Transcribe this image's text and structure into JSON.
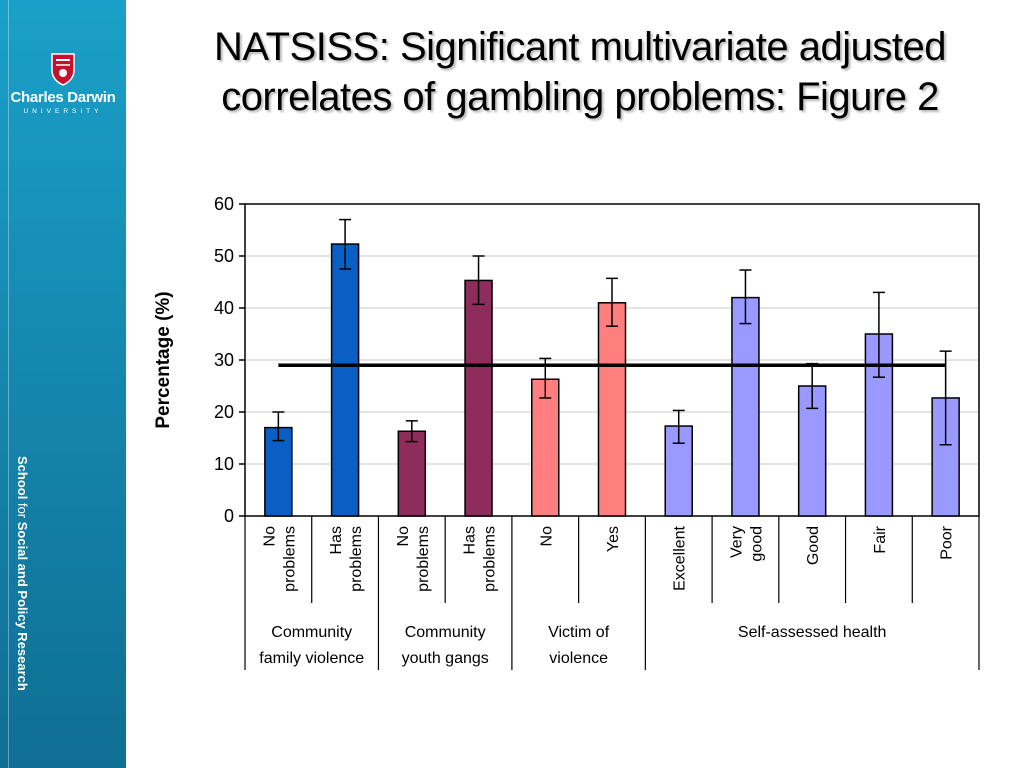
{
  "slide": {
    "title_line1": "NATSISS: Significant multivariate adjusted",
    "title_line2": "correlates of gambling problems: Figure 2"
  },
  "branding": {
    "logo_name": "Charles Darwin",
    "logo_sub": "UNIVERSITY",
    "school_prefix": "School",
    "school_for": "for",
    "school_suffix": "Social and Policy Research"
  },
  "colors": {
    "sidebar": "#1589b0",
    "blue": "#0a5fc4",
    "maroon": "#8e2d5c",
    "salmon": "#ff7f7f",
    "lavender": "#9999ff"
  },
  "chart_data": {
    "type": "bar",
    "ylabel": "Percentage (%)",
    "ylim": [
      0,
      60
    ],
    "yticks": [
      0,
      10,
      20,
      30,
      40,
      50,
      60
    ],
    "reference_line": 29,
    "grid": true,
    "bars": [
      {
        "label": [
          "No",
          "problems"
        ],
        "value": 17,
        "err_low": 14.5,
        "err_high": 20,
        "color": "#0a5fc4"
      },
      {
        "label": [
          "Has",
          "problems"
        ],
        "value": 52.3,
        "err_low": 47.5,
        "err_high": 57,
        "color": "#0a5fc4"
      },
      {
        "label": [
          "No",
          "problems"
        ],
        "value": 16.3,
        "err_low": 14.3,
        "err_high": 18.3,
        "color": "#8e2d5c"
      },
      {
        "label": [
          "Has",
          "problems"
        ],
        "value": 45.3,
        "err_low": 40.7,
        "err_high": 50,
        "color": "#8e2d5c"
      },
      {
        "label": [
          "No"
        ],
        "value": 26.3,
        "err_low": 22.7,
        "err_high": 30.3,
        "color": "#ff7f7f"
      },
      {
        "label": [
          "Yes"
        ],
        "value": 41,
        "err_low": 36.5,
        "err_high": 45.7,
        "color": "#ff7f7f"
      },
      {
        "label": [
          "Excellent"
        ],
        "value": 17.3,
        "err_low": 14,
        "err_high": 20.3,
        "color": "#9999ff"
      },
      {
        "label": [
          "Very",
          "good"
        ],
        "value": 42,
        "err_low": 37,
        "err_high": 47.3,
        "color": "#9999ff"
      },
      {
        "label": [
          "Good"
        ],
        "value": 25,
        "err_low": 20.7,
        "err_high": 29.3,
        "color": "#9999ff"
      },
      {
        "label": [
          "Fair"
        ],
        "value": 35,
        "err_low": 26.7,
        "err_high": 43,
        "color": "#9999ff"
      },
      {
        "label": [
          "Poor"
        ],
        "value": 22.7,
        "err_low": 13.7,
        "err_high": 31.7,
        "color": "#9999ff"
      }
    ],
    "groups": [
      {
        "label": [
          "Community",
          "family violence"
        ],
        "start": 0,
        "count": 2
      },
      {
        "label": [
          "Community",
          "youth gangs"
        ],
        "start": 2,
        "count": 2
      },
      {
        "label": [
          "Victim of",
          "violence"
        ],
        "start": 4,
        "count": 2
      },
      {
        "label": [
          "Self-assessed health"
        ],
        "start": 6,
        "count": 5
      }
    ]
  }
}
